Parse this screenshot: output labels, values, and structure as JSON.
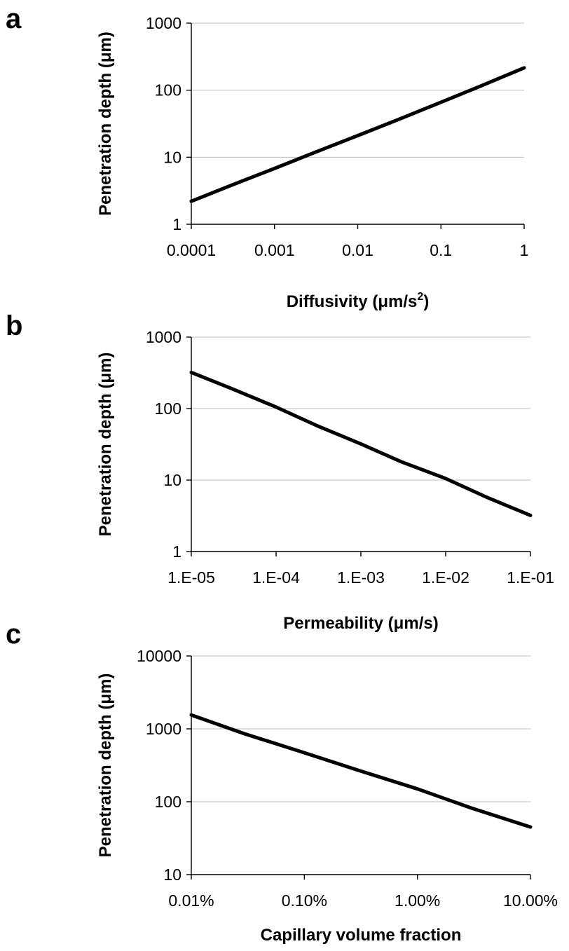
{
  "chart_data": [
    {
      "panel_label": "a",
      "type": "line",
      "xscale": "log",
      "yscale": "log",
      "xlabel": "Diffusivity (μm/s",
      "xlabel_sup": "2",
      "xlabel_suffix": ")",
      "ylabel": "Penetration depth (μm)",
      "xlim": [
        0.0001,
        1
      ],
      "ylim": [
        1,
        1000
      ],
      "x_ticks": [
        0.0001,
        0.001,
        0.01,
        0.1,
        1
      ],
      "x_tick_labels": [
        "0.0001",
        "0.001",
        "0.01",
        "0.1",
        "1"
      ],
      "y_ticks": [
        1,
        10,
        100,
        1000
      ],
      "y_tick_labels": [
        "1",
        "10",
        "100",
        "1000"
      ],
      "grid": "horizontal",
      "series": [
        {
          "x": [
            0.0001,
            0.0003,
            0.001,
            0.003,
            0.01,
            0.03,
            0.1,
            0.3,
            1
          ],
          "y": [
            2.2,
            3.8,
            6.8,
            11.7,
            21,
            36,
            66,
            115,
            215
          ]
        }
      ]
    },
    {
      "panel_label": "b",
      "type": "line",
      "xscale": "log",
      "yscale": "log",
      "xlabel": "Permeability (μm/s)",
      "ylabel": "Penetration depth (μm)",
      "xlim": [
        1e-05,
        0.1
      ],
      "ylim": [
        1,
        1000
      ],
      "x_ticks": [
        1e-05,
        0.0001,
        0.001,
        0.01,
        0.1
      ],
      "x_tick_labels": [
        "1.E-05",
        "1.E-04",
        "1.E-03",
        "1.E-02",
        "1.E-01"
      ],
      "y_ticks": [
        1,
        10,
        100,
        1000
      ],
      "y_tick_labels": [
        "1",
        "10",
        "100",
        "1000"
      ],
      "grid": "horizontal",
      "series": [
        {
          "x": [
            1e-05,
            3e-05,
            0.0001,
            0.0003,
            0.001,
            0.003,
            0.01,
            0.03,
            0.1
          ],
          "y": [
            320,
            190,
            105,
            58,
            32,
            18,
            10.5,
            5.8,
            3.2
          ]
        }
      ]
    },
    {
      "panel_label": "c",
      "type": "line",
      "xscale": "log",
      "yscale": "log",
      "xlabel": "Capillary volume fraction",
      "ylabel": "Penetration depth (μm)",
      "xlim": [
        0.0001,
        0.1
      ],
      "ylim": [
        10,
        10000
      ],
      "x_ticks": [
        0.0001,
        0.001,
        0.01,
        0.1
      ],
      "x_tick_labels": [
        "0.01%",
        "0.10%",
        "1.00%",
        "10.00%"
      ],
      "y_ticks": [
        10,
        100,
        1000,
        10000
      ],
      "y_tick_labels": [
        "10",
        "100",
        "1000",
        "10000"
      ],
      "grid": "horizontal",
      "series": [
        {
          "x": [
            0.0001,
            0.0003,
            0.001,
            0.003,
            0.01,
            0.03,
            0.1
          ],
          "y": [
            1550,
            850,
            470,
            270,
            150,
            82,
            45
          ]
        }
      ]
    }
  ],
  "colors": {
    "line": "#000000",
    "axes": "#000000",
    "grid": "#bdbdbd",
    "background": "#ffffff"
  }
}
